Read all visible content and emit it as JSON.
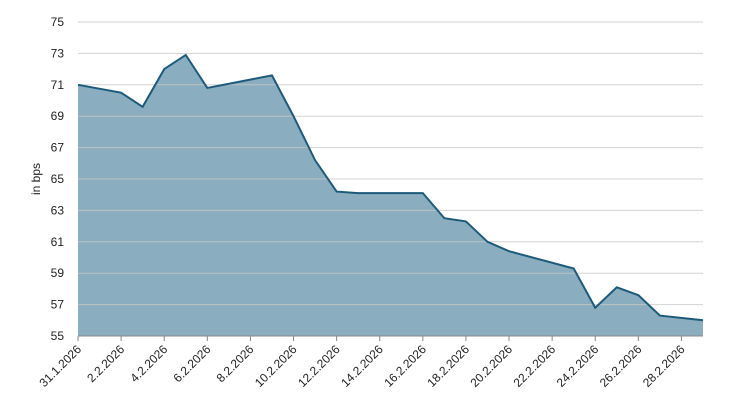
{
  "chart_data": {
    "type": "area",
    "y_label": "in bps",
    "x": [
      "31.1.2026",
      "2.2.2026",
      "3.2.2026",
      "4.2.2026",
      "5.2.2026",
      "6.2.2026",
      "9.2.2026",
      "10.2.2026",
      "11.2.2026",
      "12.2.2026",
      "13.2.2026",
      "16.2.2026",
      "17.2.2026",
      "18.2.2026",
      "19.2.2026",
      "20.2.2026",
      "23.2.2026",
      "24.2.2026",
      "25.2.2026",
      "26.2.2026",
      "27.2.2026",
      "1.3.2026"
    ],
    "series": [
      {
        "name": "in bps",
        "color": "#1d5a7a",
        "fill": "#8aaebf",
        "values": [
          71.0,
          70.5,
          69.6,
          72.0,
          72.9,
          70.8,
          71.6,
          69.0,
          66.2,
          64.2,
          64.1,
          64.1,
          62.5,
          62.3,
          61.0,
          60.4,
          59.3,
          56.8,
          58.1,
          57.6,
          56.3,
          56.0
        ]
      }
    ],
    "xlim": [
      "31.1.2026",
      "1.3.2026"
    ],
    "xticks": [
      "31.1.2026",
      "2.2.2026",
      "4.2.2026",
      "6.2.2026",
      "8.2.2026",
      "10.2.2026",
      "12.2.2026",
      "14.2.2026",
      "16.2.2026",
      "18.2.2026",
      "20.2.2026",
      "22.2.2026",
      "24.2.2026",
      "26.2.2026",
      "28.2.2026"
    ],
    "ylim": [
      55,
      75
    ],
    "yticks": [
      55,
      57,
      59,
      61,
      63,
      65,
      67,
      69,
      71,
      73,
      75
    ],
    "grid": true
  }
}
